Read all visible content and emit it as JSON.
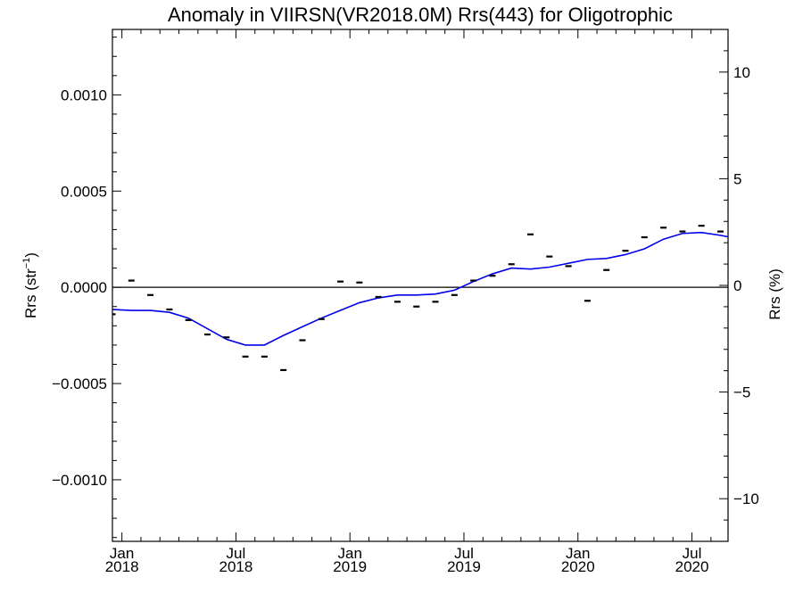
{
  "chart_data": {
    "type": "line",
    "title": "Anomaly in VIIRSN(VR2018.0M) Rrs(443) for Oligotrophic",
    "ylabel_left": {
      "base": "Rrs (str",
      "sup": "−1",
      "end": ")"
    },
    "ylabel_right": "Rrs (%)",
    "x_unit": "months since Jan 2018",
    "xlim": [
      -0.5,
      31.9
    ],
    "ylim_left": [
      -0.00132,
      0.00134
    ],
    "ylim_right": [
      -12,
      12
    ],
    "zero_line": true,
    "grid": false,
    "left_ticks": [
      {
        "value": 0.001,
        "label": "0.0010"
      },
      {
        "value": 0.0005,
        "label": "0.0005"
      },
      {
        "value": 0.0,
        "label": "0.0000"
      },
      {
        "value": -0.0005,
        "label": "−0.0005"
      },
      {
        "value": -0.001,
        "label": "−0.0010"
      }
    ],
    "right_ticks": [
      {
        "value": 10,
        "label": "10"
      },
      {
        "value": 5,
        "label": "5"
      },
      {
        "value": 0,
        "label": "0"
      },
      {
        "value": -5,
        "label": "−5"
      },
      {
        "value": -10,
        "label": "−10"
      }
    ],
    "x_ticks": [
      {
        "value": 0,
        "month": "Jan",
        "year": "2018"
      },
      {
        "value": 6,
        "month": "Jul",
        "year": "2018"
      },
      {
        "value": 12,
        "month": "Jan",
        "year": "2019"
      },
      {
        "value": 18,
        "month": "Jul",
        "year": "2019"
      },
      {
        "value": 24,
        "month": "Jan",
        "year": "2020"
      },
      {
        "value": 30,
        "month": "Jul",
        "year": "2020"
      }
    ],
    "series": [
      {
        "kind": "monthly_anomaly_markers",
        "color": "#000000",
        "x": [
          -0.5,
          0.5,
          1.5,
          2.5,
          3.5,
          4.5,
          5.5,
          6.5,
          7.5,
          8.5,
          9.5,
          10.5,
          11.5,
          12.5,
          13.5,
          14.5,
          15.5,
          16.5,
          17.5,
          18.5,
          19.5,
          20.5,
          21.5,
          22.5,
          23.5,
          24.5,
          25.5,
          26.5,
          27.5,
          28.5,
          29.5,
          30.5,
          31.5,
          32.5
        ],
        "values": [
          -0.00014,
          3.5e-05,
          -4e-05,
          -0.000115,
          -0.00017,
          -0.000245,
          -0.00026,
          -0.00036,
          -0.00036,
          -0.00043,
          -0.000275,
          -0.000165,
          3e-05,
          2.5e-05,
          -5e-05,
          -7.5e-05,
          -0.0001,
          -7.5e-05,
          -4e-05,
          3.5e-05,
          6e-05,
          0.00012,
          0.000275,
          0.00016,
          0.00011,
          -7e-05,
          9e-05,
          0.00019,
          0.00026,
          0.00031,
          0.00029,
          0.00032,
          0.00029,
          0.0003
        ]
      },
      {
        "kind": "smoothed_trend",
        "color": "#0000ee",
        "x": [
          -0.5,
          0.5,
          1.5,
          2.5,
          3.5,
          4.5,
          5.5,
          6.5,
          7.5,
          8.5,
          9.5,
          10.5,
          11.5,
          12.5,
          13.5,
          14.5,
          15.5,
          16.5,
          17.5,
          18.5,
          19.5,
          20.5,
          21.5,
          22.5,
          23.5,
          24.5,
          25.5,
          26.5,
          27.5,
          28.5,
          29.5,
          30.5,
          31.5,
          32.5
        ],
        "values": [
          -0.000115,
          -0.00012,
          -0.00012,
          -0.00013,
          -0.00016,
          -0.000215,
          -0.00027,
          -0.0003,
          -0.0003,
          -0.00025,
          -0.000205,
          -0.00016,
          -0.00012,
          -8e-05,
          -5.5e-05,
          -4e-05,
          -4e-05,
          -3.5e-05,
          -1.5e-05,
          3e-05,
          7e-05,
          0.0001,
          9.5e-05,
          0.000105,
          0.000125,
          0.000145,
          0.00015,
          0.00017,
          0.0002,
          0.00025,
          0.00028,
          0.000285,
          0.00027,
          0.00025
        ]
      }
    ]
  }
}
